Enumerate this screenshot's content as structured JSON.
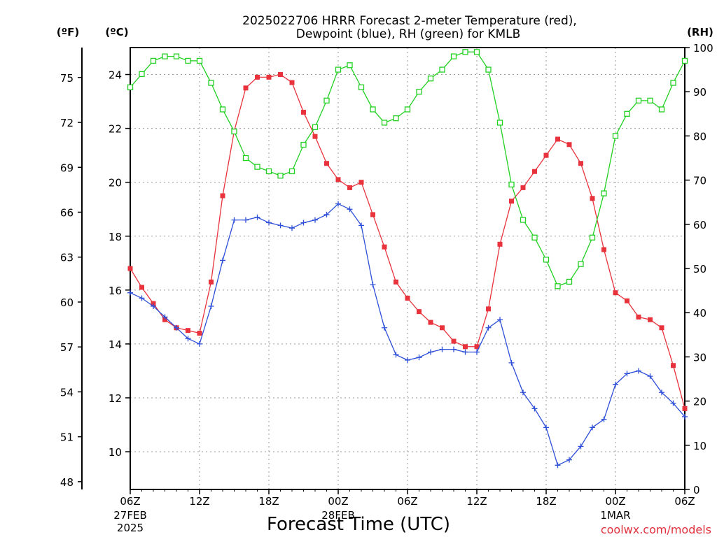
{
  "chart_data": {
    "type": "line",
    "title_lines": [
      "2025022706 HRRR Forecast 2-meter Temperature (red),",
      "Dewpoint (blue), RH (green) for KMLB"
    ],
    "xlabel": "Forecast Time (UTC)",
    "credit": "coolwx.com/models",
    "x_ticks": [
      {
        "hour": 0,
        "label": "06Z",
        "sub": [
          "27FEB",
          "2025"
        ]
      },
      {
        "hour": 6,
        "label": "12Z",
        "sub": []
      },
      {
        "hour": 12,
        "label": "18Z",
        "sub": []
      },
      {
        "hour": 18,
        "label": "00Z",
        "sub": [
          "28FEB"
        ]
      },
      {
        "hour": 24,
        "label": "06Z",
        "sub": []
      },
      {
        "hour": 30,
        "label": "12Z",
        "sub": []
      },
      {
        "hour": 36,
        "label": "18Z",
        "sub": []
      },
      {
        "hour": 42,
        "label": "00Z",
        "sub": [
          "1MAR"
        ]
      },
      {
        "hour": 48,
        "label": "06Z",
        "sub": []
      }
    ],
    "x_range": [
      0,
      48
    ],
    "left_axis_c": {
      "unit": "(ºC)",
      "range": [
        8.6,
        25.0
      ],
      "ticks": [
        10,
        12,
        14,
        16,
        18,
        20,
        22,
        24
      ]
    },
    "left_axis_f": {
      "unit": "(ºF)",
      "ticks": [
        48,
        51,
        54,
        57,
        60,
        63,
        66,
        69,
        72,
        75
      ]
    },
    "right_axis_rh": {
      "unit": "(RH)",
      "range": [
        0,
        100
      ],
      "ticks": [
        0,
        10,
        20,
        30,
        40,
        50,
        60,
        70,
        80,
        90,
        100
      ]
    },
    "grid": true,
    "series": [
      {
        "name": "Temperature",
        "color": "#e8323c",
        "marker": "filled-square",
        "unit": "C",
        "values": [
          16.8,
          16.1,
          15.5,
          14.9,
          14.6,
          14.5,
          14.4,
          16.3,
          19.5,
          21.9,
          23.5,
          23.9,
          23.9,
          24.0,
          23.7,
          22.6,
          21.7,
          20.7,
          20.1,
          19.8,
          20.0,
          18.8,
          17.6,
          16.3,
          15.7,
          15.2,
          14.8,
          14.6,
          14.1,
          13.9,
          13.9,
          15.3,
          17.7,
          19.3,
          19.8,
          20.4,
          21.0,
          21.6,
          21.4,
          20.7,
          19.4,
          17.5,
          15.9,
          15.6,
          15.0,
          14.9,
          14.6,
          13.2,
          11.6
        ]
      },
      {
        "name": "Dewpoint",
        "color": "#2e4fd8",
        "marker": "plus",
        "unit": "C",
        "values": [
          15.9,
          15.7,
          15.4,
          15.0,
          14.6,
          14.2,
          14.0,
          15.4,
          17.1,
          18.6,
          18.6,
          18.7,
          18.5,
          18.4,
          18.3,
          18.5,
          18.6,
          18.8,
          19.2,
          19.0,
          18.4,
          16.2,
          14.6,
          13.6,
          13.4,
          13.5,
          13.7,
          13.8,
          13.8,
          13.7,
          13.7,
          14.6,
          14.9,
          13.3,
          12.2,
          11.6,
          10.9,
          9.5,
          9.7,
          10.2,
          10.9,
          11.2,
          12.5,
          12.9,
          13.0,
          12.8,
          12.2,
          11.8,
          11.3
        ]
      },
      {
        "name": "RH",
        "color": "#22d022",
        "marker": "open-square",
        "unit": "%",
        "values": [
          91,
          94,
          97,
          98,
          98,
          97,
          97,
          92,
          86,
          81,
          75,
          73,
          72,
          71,
          72,
          78,
          82,
          88,
          95,
          96,
          91,
          86,
          83,
          84,
          86,
          90,
          93,
          95,
          98,
          99,
          99,
          95,
          83,
          69,
          61,
          57,
          52,
          46,
          47,
          51,
          57,
          67,
          80,
          85,
          88,
          88,
          86,
          92,
          97
        ]
      }
    ]
  }
}
